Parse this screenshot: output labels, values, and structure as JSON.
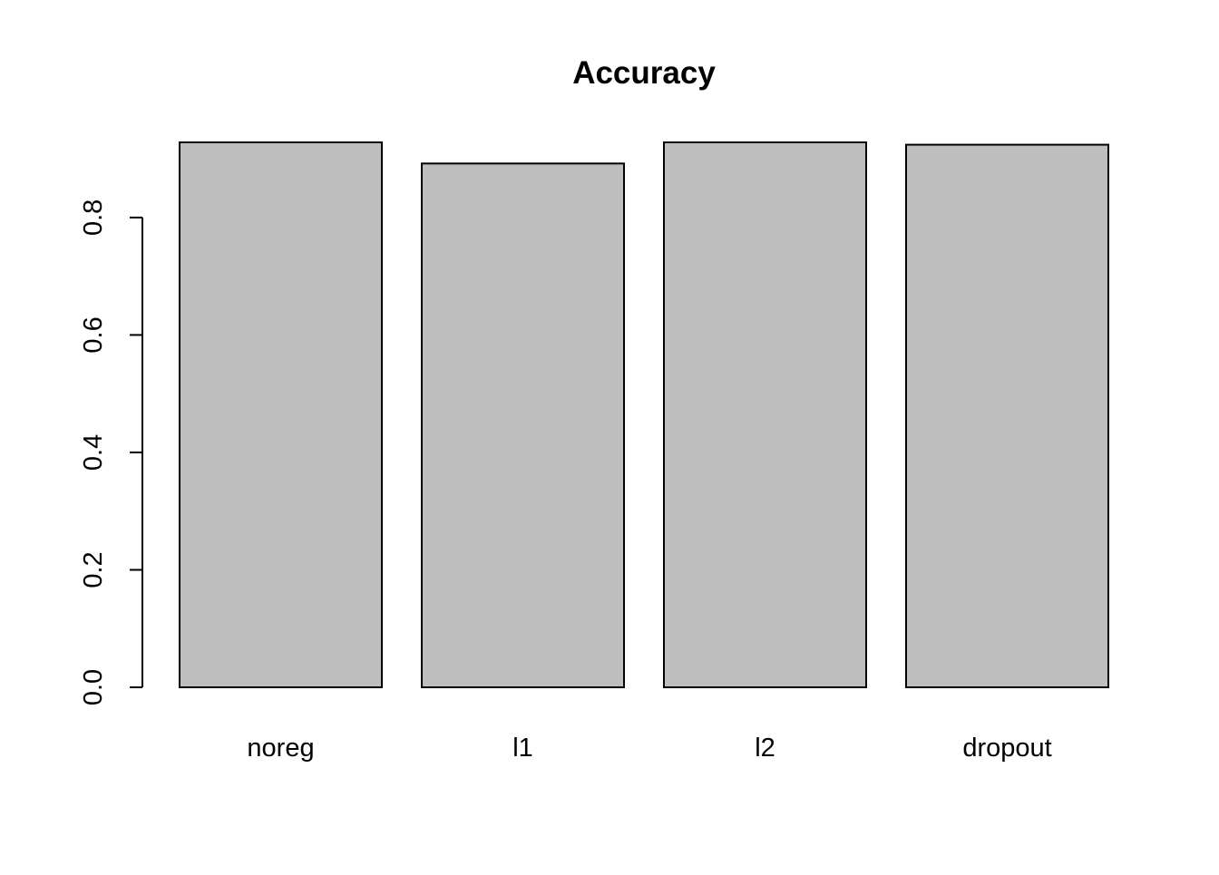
{
  "chart_data": {
    "type": "bar",
    "title": "Accuracy",
    "xlabel": "",
    "ylabel": "",
    "categories": [
      "noreg",
      "l1",
      "l2",
      "dropout"
    ],
    "values": [
      0.928,
      0.892,
      0.928,
      0.924
    ],
    "ylim": [
      0,
      0.928
    ],
    "yticks": [
      0.0,
      0.2,
      0.4,
      0.6,
      0.8
    ],
    "ytick_labels": [
      "0.0",
      "0.2",
      "0.4",
      "0.6",
      "0.8"
    ],
    "grid": false,
    "legend": "none",
    "bar_color": "#bebebe",
    "edge_color": "#000000"
  }
}
